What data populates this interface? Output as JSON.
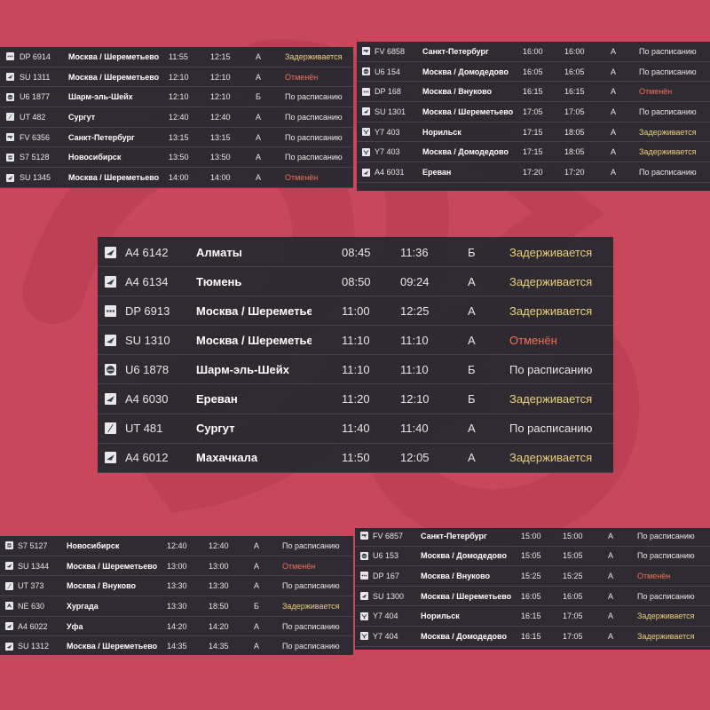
{
  "colors": {
    "background": "#c9475a",
    "board": "#262830",
    "text": "#e6e6ea",
    "delayed": "#e8d27a",
    "cancelled": "#ef7256"
  },
  "boards": {
    "top_left": [
      {
        "icon": "dots-airline-icon",
        "flight": "DP 6914",
        "city": "Москва / Шереметьево",
        "sched": "11:55",
        "est": "12:15",
        "term": "А",
        "status": "Задерживается",
        "kind": "delayed"
      },
      {
        "icon": "wing-airline-icon",
        "flight": "SU 1311",
        "city": "Москва / Шереметьево",
        "sched": "12:10",
        "est": "12:10",
        "term": "А",
        "status": "Отменён",
        "kind": "cancelled"
      },
      {
        "icon": "globe-airline-icon",
        "flight": "U6 1877",
        "city": "Шарм-эль-Шейх",
        "sched": "12:10",
        "est": "12:10",
        "term": "Б",
        "status": "По расписанию",
        "kind": "ontime"
      },
      {
        "icon": "slash-airline-icon",
        "flight": "UT 482",
        "city": "Сургут",
        "sched": "12:40",
        "est": "12:40",
        "term": "А",
        "status": "По расписанию",
        "kind": "ontime"
      },
      {
        "icon": "arrow-airline-icon",
        "flight": "FV 6356",
        "city": "Санкт-Петербург",
        "sched": "13:15",
        "est": "13:15",
        "term": "А",
        "status": "По расписанию",
        "kind": "ontime"
      },
      {
        "icon": "s7-airline-icon",
        "flight": "S7 5128",
        "city": "Новосибирск",
        "sched": "13:50",
        "est": "13:50",
        "term": "А",
        "status": "По расписанию",
        "kind": "ontime"
      },
      {
        "icon": "wing-airline-icon",
        "flight": "SU 1345",
        "city": "Москва / Шереметьево",
        "sched": "14:00",
        "est": "14:00",
        "term": "А",
        "status": "Отменён",
        "kind": "cancelled"
      }
    ],
    "top_right": [
      {
        "icon": "arrow-airline-icon",
        "flight": "FV 6858",
        "city": "Санкт-Петербург",
        "sched": "16:00",
        "est": "16:00",
        "term": "А",
        "status": "По расписанию",
        "kind": "ontime"
      },
      {
        "icon": "globe-airline-icon",
        "flight": "U6 154",
        "city": "Москва / Домодедово",
        "sched": "16:05",
        "est": "16:05",
        "term": "А",
        "status": "По расписанию",
        "kind": "ontime"
      },
      {
        "icon": "dots-airline-icon",
        "flight": "DP 168",
        "city": "Москва / Внуково",
        "sched": "16:15",
        "est": "16:15",
        "term": "А",
        "status": "Отменён",
        "kind": "cancelled"
      },
      {
        "icon": "wing-airline-icon",
        "flight": "SU 1301",
        "city": "Москва / Шереметьево",
        "sched": "17:05",
        "est": "17:05",
        "term": "А",
        "status": "По расписанию",
        "kind": "ontime"
      },
      {
        "icon": "y7-airline-icon",
        "flight": "Y7 403",
        "city": "Норильск",
        "sched": "17:15",
        "est": "18:05",
        "term": "А",
        "status": "Задерживается",
        "kind": "delayed"
      },
      {
        "icon": "y7-airline-icon",
        "flight": "Y7 403",
        "city": "Москва / Домодедово",
        "sched": "17:15",
        "est": "18:05",
        "term": "А",
        "status": "Задерживается",
        "kind": "delayed"
      },
      {
        "icon": "wing-airline-icon",
        "flight": "A4 6031",
        "city": "Ереван",
        "sched": "17:20",
        "est": "17:20",
        "term": "А",
        "status": "По расписанию",
        "kind": "ontime"
      }
    ],
    "middle": [
      {
        "icon": "wing-airline-icon",
        "flight": "A4 6142",
        "city": "Алматы",
        "sched": "08:45",
        "est": "11:36",
        "term": "Б",
        "status": "Задерживается",
        "kind": "delayed"
      },
      {
        "icon": "wing-airline-icon",
        "flight": "A4 6134",
        "city": "Тюмень",
        "sched": "08:50",
        "est": "09:24",
        "term": "А",
        "status": "Задерживается",
        "kind": "delayed"
      },
      {
        "icon": "dots-airline-icon",
        "flight": "DP 6913",
        "city": "Москва / Шереметьево",
        "sched": "11:00",
        "est": "12:25",
        "term": "А",
        "status": "Задерживается",
        "kind": "delayed"
      },
      {
        "icon": "wing-airline-icon",
        "flight": "SU 1310",
        "city": "Москва / Шереметьево",
        "sched": "11:10",
        "est": "11:10",
        "term": "А",
        "status": "Отменён",
        "kind": "cancelled"
      },
      {
        "icon": "globe-airline-icon",
        "flight": "U6 1878",
        "city": "Шарм-эль-Шейх",
        "sched": "11:10",
        "est": "11:10",
        "term": "Б",
        "status": "По расписанию",
        "kind": "ontime"
      },
      {
        "icon": "wing-airline-icon",
        "flight": "A4 6030",
        "city": "Ереван",
        "sched": "11:20",
        "est": "12:10",
        "term": "Б",
        "status": "Задерживается",
        "kind": "delayed"
      },
      {
        "icon": "slash-airline-icon",
        "flight": "UT 481",
        "city": "Сургут",
        "sched": "11:40",
        "est": "11:40",
        "term": "А",
        "status": "По расписанию",
        "kind": "ontime"
      },
      {
        "icon": "wing-airline-icon",
        "flight": "A4 6012",
        "city": "Махачкала",
        "sched": "11:50",
        "est": "12:05",
        "term": "А",
        "status": "Задерживается",
        "kind": "delayed"
      }
    ],
    "bottom_left": [
      {
        "icon": "s7-airline-icon",
        "flight": "S7 5127",
        "city": "Новосибирск",
        "sched": "12:40",
        "est": "12:40",
        "term": "А",
        "status": "По расписанию",
        "kind": "ontime"
      },
      {
        "icon": "wing-airline-icon",
        "flight": "SU 1344",
        "city": "Москва / Шереметьево",
        "sched": "13:00",
        "est": "13:00",
        "term": "А",
        "status": "Отменён",
        "kind": "cancelled"
      },
      {
        "icon": "slash-airline-icon",
        "flight": "UT 373",
        "city": "Москва / Внуково",
        "sched": "13:30",
        "est": "13:30",
        "term": "А",
        "status": "По расписанию",
        "kind": "ontime"
      },
      {
        "icon": "nordwind-airline-icon",
        "flight": "NE 630",
        "city": "Хургада",
        "sched": "13:30",
        "est": "18:50",
        "term": "Б",
        "status": "Задерживается",
        "kind": "delayed"
      },
      {
        "icon": "wing-airline-icon",
        "flight": "A4 6022",
        "city": "Уфа",
        "sched": "14:20",
        "est": "14:20",
        "term": "А",
        "status": "По расписанию",
        "kind": "ontime"
      },
      {
        "icon": "wing-airline-icon",
        "flight": "SU 1312",
        "city": "Москва / Шереметьево",
        "sched": "14:35",
        "est": "14:35",
        "term": "А",
        "status": "По расписанию",
        "kind": "ontime"
      }
    ],
    "bottom_right": [
      {
        "icon": "arrow-airline-icon",
        "flight": "FV 6857",
        "city": "Санкт-Петербург",
        "sched": "15:00",
        "est": "15:00",
        "term": "А",
        "status": "По расписанию",
        "kind": "ontime"
      },
      {
        "icon": "globe-airline-icon",
        "flight": "U6 153",
        "city": "Москва / Домодедово",
        "sched": "15:05",
        "est": "15:05",
        "term": "А",
        "status": "По расписанию",
        "kind": "ontime"
      },
      {
        "icon": "dots-airline-icon",
        "flight": "DP 167",
        "city": "Москва / Внуково",
        "sched": "15:25",
        "est": "15:25",
        "term": "А",
        "status": "Отменён",
        "kind": "cancelled"
      },
      {
        "icon": "wing-airline-icon",
        "flight": "SU 1300",
        "city": "Москва / Шереметьево",
        "sched": "16:05",
        "est": "16:05",
        "term": "А",
        "status": "По расписанию",
        "kind": "ontime"
      },
      {
        "icon": "y7-airline-icon",
        "flight": "Y7 404",
        "city": "Норильск",
        "sched": "16:15",
        "est": "17:05",
        "term": "А",
        "status": "Задерживается",
        "kind": "delayed"
      },
      {
        "icon": "y7-airline-icon",
        "flight": "Y7 404",
        "city": "Москва / Домодедово",
        "sched": "16:15",
        "est": "17:05",
        "term": "А",
        "status": "Задерживается",
        "kind": "delayed"
      }
    ]
  }
}
